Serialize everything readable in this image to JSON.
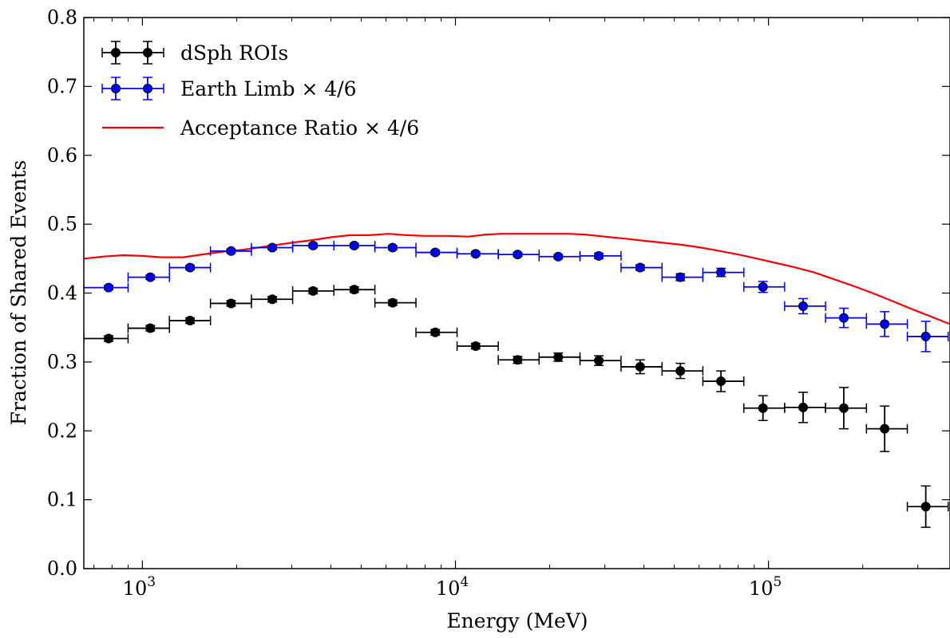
{
  "chart_data": {
    "type": "scatter",
    "title": "",
    "xlabel": "Energy (MeV)",
    "ylabel": "Fraction of Shared Events",
    "xscale": "log",
    "xlim": [
      650,
      380000
    ],
    "ylim": [
      0.0,
      0.8
    ],
    "yticks": [
      "0.0",
      "0.1",
      "0.2",
      "0.3",
      "0.4",
      "0.5",
      "0.6",
      "0.7",
      "0.8"
    ],
    "xticks": [
      {
        "value": 1000,
        "base": "10",
        "exp": "3"
      },
      {
        "value": 10000,
        "base": "10",
        "exp": "4"
      },
      {
        "value": 100000,
        "base": "10",
        "exp": "5"
      }
    ],
    "grid": false,
    "legend_position": "top-left",
    "series": [
      {
        "name": "dSph ROIs",
        "kind": "errorbar",
        "color": "#000000",
        "points": [
          {
            "x": 780,
            "xlo": 650,
            "xhi": 900,
            "y": 0.334,
            "yerr": 0.004
          },
          {
            "x": 1060,
            "xlo": 900,
            "xhi": 1220,
            "y": 0.349,
            "yerr": 0.004
          },
          {
            "x": 1420,
            "xlo": 1220,
            "xhi": 1650,
            "y": 0.36,
            "yerr": 0.004
          },
          {
            "x": 1920,
            "xlo": 1650,
            "xhi": 2230,
            "y": 0.385,
            "yerr": 0.004
          },
          {
            "x": 2600,
            "xlo": 2230,
            "xhi": 3020,
            "y": 0.391,
            "yerr": 0.004
          },
          {
            "x": 3510,
            "xlo": 3020,
            "xhi": 4090,
            "y": 0.403,
            "yerr": 0.004
          },
          {
            "x": 4750,
            "xlo": 4090,
            "xhi": 5530,
            "y": 0.405,
            "yerr": 0.004
          },
          {
            "x": 6300,
            "xlo": 5530,
            "xhi": 7480,
            "y": 0.386,
            "yerr": 0.004
          },
          {
            "x": 8620,
            "xlo": 7480,
            "xhi": 10120,
            "y": 0.343,
            "yerr": 0.004
          },
          {
            "x": 11600,
            "xlo": 10120,
            "xhi": 13700,
            "y": 0.323,
            "yerr": 0.004
          },
          {
            "x": 15800,
            "xlo": 13700,
            "xhi": 18500,
            "y": 0.303,
            "yerr": 0.005
          },
          {
            "x": 21300,
            "xlo": 18500,
            "xhi": 25000,
            "y": 0.307,
            "yerr": 0.006
          },
          {
            "x": 28700,
            "xlo": 25000,
            "xhi": 33800,
            "y": 0.302,
            "yerr": 0.007
          },
          {
            "x": 38900,
            "xlo": 33800,
            "xhi": 45700,
            "y": 0.293,
            "yerr": 0.01
          },
          {
            "x": 52300,
            "xlo": 45700,
            "xhi": 61700,
            "y": 0.287,
            "yerr": 0.011
          },
          {
            "x": 70500,
            "xlo": 61700,
            "xhi": 83400,
            "y": 0.272,
            "yerr": 0.015
          },
          {
            "x": 96000,
            "xlo": 83400,
            "xhi": 112600,
            "y": 0.233,
            "yerr": 0.018
          },
          {
            "x": 129000,
            "xlo": 112600,
            "xhi": 152100,
            "y": 0.234,
            "yerr": 0.022
          },
          {
            "x": 174000,
            "xlo": 152100,
            "xhi": 205500,
            "y": 0.233,
            "yerr": 0.03
          },
          {
            "x": 235000,
            "xlo": 205500,
            "xhi": 277600,
            "y": 0.203,
            "yerr": 0.033
          },
          {
            "x": 318000,
            "xlo": 277600,
            "xhi": 375000,
            "y": 0.09,
            "yerr": 0.03
          }
        ]
      },
      {
        "name": "Earth Limb × 4/6",
        "kind": "errorbar",
        "color": "#0000ff",
        "points": [
          {
            "x": 780,
            "xlo": 650,
            "xhi": 900,
            "y": 0.408,
            "yerr": 0.003
          },
          {
            "x": 1060,
            "xlo": 900,
            "xhi": 1220,
            "y": 0.423,
            "yerr": 0.003
          },
          {
            "x": 1420,
            "xlo": 1220,
            "xhi": 1650,
            "y": 0.437,
            "yerr": 0.003
          },
          {
            "x": 1920,
            "xlo": 1650,
            "xhi": 2230,
            "y": 0.461,
            "yerr": 0.003
          },
          {
            "x": 2600,
            "xlo": 2230,
            "xhi": 3020,
            "y": 0.466,
            "yerr": 0.003
          },
          {
            "x": 3510,
            "xlo": 3020,
            "xhi": 4090,
            "y": 0.469,
            "yerr": 0.003
          },
          {
            "x": 4750,
            "xlo": 4090,
            "xhi": 5530,
            "y": 0.469,
            "yerr": 0.003
          },
          {
            "x": 6300,
            "xlo": 5530,
            "xhi": 7480,
            "y": 0.466,
            "yerr": 0.003
          },
          {
            "x": 8620,
            "xlo": 7480,
            "xhi": 10120,
            "y": 0.459,
            "yerr": 0.003
          },
          {
            "x": 11600,
            "xlo": 10120,
            "xhi": 13700,
            "y": 0.457,
            "yerr": 0.003
          },
          {
            "x": 15800,
            "xlo": 13700,
            "xhi": 18500,
            "y": 0.456,
            "yerr": 0.003
          },
          {
            "x": 21300,
            "xlo": 18500,
            "xhi": 25000,
            "y": 0.453,
            "yerr": 0.003
          },
          {
            "x": 28700,
            "xlo": 25000,
            "xhi": 33800,
            "y": 0.454,
            "yerr": 0.004
          },
          {
            "x": 38900,
            "xlo": 33800,
            "xhi": 45700,
            "y": 0.437,
            "yerr": 0.004
          },
          {
            "x": 52300,
            "xlo": 45700,
            "xhi": 61700,
            "y": 0.423,
            "yerr": 0.005
          },
          {
            "x": 70500,
            "xlo": 61700,
            "xhi": 83400,
            "y": 0.43,
            "yerr": 0.006
          },
          {
            "x": 96000,
            "xlo": 83400,
            "xhi": 112600,
            "y": 0.409,
            "yerr": 0.008
          },
          {
            "x": 129000,
            "xlo": 112600,
            "xhi": 152100,
            "y": 0.381,
            "yerr": 0.011
          },
          {
            "x": 174000,
            "xlo": 152100,
            "xhi": 205500,
            "y": 0.364,
            "yerr": 0.014
          },
          {
            "x": 235000,
            "xlo": 205500,
            "xhi": 277600,
            "y": 0.355,
            "yerr": 0.018
          },
          {
            "x": 318000,
            "xlo": 277600,
            "xhi": 375000,
            "y": 0.337,
            "yerr": 0.022
          }
        ]
      },
      {
        "name": "Acceptance Ratio × 4/6",
        "kind": "line",
        "color": "#ff0000",
        "x": [
          650,
          750,
          870,
          1000,
          1150,
          1350,
          1550,
          1800,
          2100,
          2500,
          3000,
          3500,
          4000,
          4600,
          5300,
          6100,
          7000,
          8000,
          9500,
          11000,
          12500,
          14000,
          16000,
          18000,
          20500,
          23000,
          26000,
          30000,
          35000,
          40000,
          46000,
          53000,
          61000,
          70000,
          80000,
          92000,
          105000,
          120000,
          140000,
          160000,
          185000,
          215000,
          250000,
          290000,
          330000,
          380000
        ],
        "y": [
          0.45,
          0.453,
          0.455,
          0.454,
          0.452,
          0.452,
          0.456,
          0.46,
          0.463,
          0.468,
          0.473,
          0.477,
          0.481,
          0.484,
          0.484,
          0.486,
          0.484,
          0.483,
          0.483,
          0.482,
          0.485,
          0.486,
          0.486,
          0.486,
          0.486,
          0.486,
          0.485,
          0.482,
          0.479,
          0.476,
          0.473,
          0.47,
          0.466,
          0.461,
          0.456,
          0.45,
          0.444,
          0.438,
          0.43,
          0.421,
          0.411,
          0.4,
          0.388,
          0.376,
          0.366,
          0.355
        ]
      }
    ]
  }
}
